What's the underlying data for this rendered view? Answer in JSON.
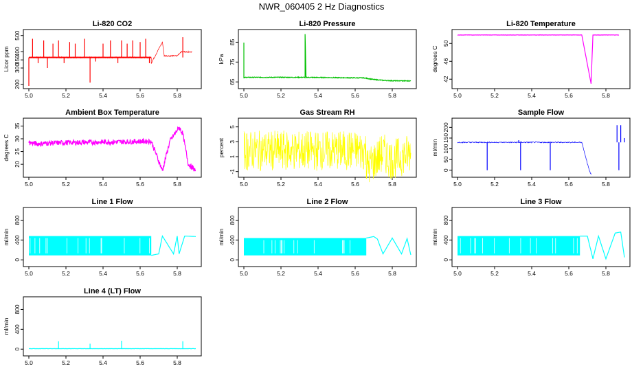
{
  "title": "NWR_060405 2 Hz Diagnostics",
  "chart_data": [
    {
      "type": "line",
      "title": "Li-820 CO2",
      "ylabel": "Licor ppm",
      "color": "#ff0000",
      "xlim": [
        5.0,
        5.9
      ],
      "ylim": [
        190,
        520
      ],
      "xticks": [
        "5.0",
        "5.2",
        "5.4",
        "5.6",
        "5.8"
      ],
      "yticks": [
        "200",
        "300",
        "350",
        "400",
        "500"
      ],
      "series": [
        {
          "name": "CO2",
          "baseline": 365,
          "noise": 4,
          "x": [
            5.0,
            5.66,
            5.66,
            5.72,
            5.73,
            5.8,
            5.82,
            5.88
          ],
          "y": [
            365,
            365,
            330,
            460,
            375,
            375,
            400,
            400
          ],
          "spikes_x": [
            5.0,
            5.02,
            5.05,
            5.08,
            5.1,
            5.13,
            5.16,
            5.19,
            5.22,
            5.25,
            5.3,
            5.33,
            5.36,
            5.4,
            5.44,
            5.48,
            5.5,
            5.53,
            5.56,
            5.6,
            5.63,
            5.65,
            5.83
          ],
          "spikes_y": [
            190,
            480,
            330,
            470,
            300,
            450,
            470,
            330,
            460,
            450,
            480,
            210,
            340,
            450,
            470,
            330,
            470,
            450,
            470,
            460,
            480,
            330,
            490
          ]
        }
      ]
    },
    {
      "type": "line",
      "title": "Li-820 Pressure",
      "ylabel": "kPa",
      "color": "#00c000",
      "xlim": [
        5.0,
        5.9
      ],
      "ylim": [
        63,
        90
      ],
      "xticks": [
        "5.0",
        "5.2",
        "5.4",
        "5.6",
        "5.8"
      ],
      "yticks": [
        "65",
        "75",
        "85"
      ],
      "series": [
        {
          "name": "Pressure",
          "baseline": null,
          "noise": 0.2,
          "x": [
            5.0,
            5.0,
            5.01,
            5.33,
            5.33,
            5.335,
            5.65,
            5.7,
            5.75,
            5.8,
            5.9
          ],
          "y": [
            85,
            67,
            67.3,
            67.3,
            89,
            67.3,
            67.0,
            66.2,
            65.8,
            65.6,
            65.5
          ],
          "spikes_x": [],
          "spikes_y": []
        }
      ]
    },
    {
      "type": "line",
      "title": "Li-820 Temperature",
      "ylabel": "degrees C",
      "color": "#ff00ff",
      "xlim": [
        5.0,
        5.9
      ],
      "ylim": [
        40.5,
        52.5
      ],
      "xticks": [
        "5.0",
        "5.2",
        "5.4",
        "5.6",
        "5.8"
      ],
      "yticks": [
        "42",
        "46",
        "50"
      ],
      "series": [
        {
          "name": "Temperature",
          "baseline": null,
          "noise": 0.03,
          "x": [
            5.0,
            5.67,
            5.72,
            5.73,
            5.74,
            5.87
          ],
          "y": [
            51.9,
            51.9,
            41.0,
            51.9,
            51.9,
            51.9
          ],
          "spikes_x": [],
          "spikes_y": []
        }
      ]
    },
    {
      "type": "line",
      "title": "Ambient Box Temperature",
      "ylabel": "degrees C",
      "color": "#ff00ff",
      "xlim": [
        5.0,
        5.9
      ],
      "ylim": [
        16,
        37
      ],
      "xticks": [
        "5.0",
        "5.2",
        "5.4",
        "5.6",
        "5.8"
      ],
      "yticks": [
        "20",
        "25",
        "30",
        "35"
      ],
      "series": [
        {
          "name": "Box temp",
          "baseline": null,
          "noise": 1.0,
          "x": [
            5.0,
            5.05,
            5.1,
            5.2,
            5.3,
            5.4,
            5.5,
            5.6,
            5.66,
            5.72,
            5.76,
            5.81,
            5.83,
            5.86,
            5.9
          ],
          "y": [
            28.5,
            28,
            28.3,
            28.5,
            28.6,
            28.7,
            28.8,
            29,
            29,
            17.5,
            29,
            34.5,
            32,
            20,
            17.5
          ],
          "spikes_x": [],
          "spikes_y": []
        }
      ]
    },
    {
      "type": "line",
      "title": "Gas Stream RH",
      "ylabel": "percent",
      "color": "#ffff00",
      "xlim": [
        5.0,
        5.9
      ],
      "ylim": [
        -1.4,
        5.8
      ],
      "xticks": [
        "5.0",
        "5.2",
        "5.4",
        "5.6",
        "5.8"
      ],
      "yticks": [
        "-1",
        "1",
        "3",
        "5"
      ],
      "series": [
        {
          "name": "RH",
          "baseline": null,
          "noise": 2.7,
          "x": [
            5.0,
            5.66,
            5.66,
            5.73,
            5.75,
            5.8,
            5.82,
            5.9
          ],
          "y": [
            1.8,
            1.8,
            -0.5,
            1.0,
            1.5,
            0.5,
            0.8,
            1.5
          ],
          "spikes_x": [],
          "spikes_y": []
        }
      ]
    },
    {
      "type": "line",
      "title": "Sample Flow",
      "ylabel": "ml/min",
      "color": "#0000ff",
      "xlim": [
        5.0,
        5.9
      ],
      "ylim": [
        -20,
        230
      ],
      "xticks": [
        "5.0",
        "5.2",
        "5.4",
        "5.6",
        "5.8"
      ],
      "yticks": [
        "0",
        "50",
        "100",
        "150",
        "200"
      ],
      "series": [
        {
          "name": "Sample flow",
          "baseline": null,
          "noise": 2.5,
          "x": [
            5.0,
            5.67,
            5.71,
            5.72
          ],
          "y": [
            130,
            130,
            0,
            -20
          ],
          "spikes_x": [
            5.16,
            5.33,
            5.34,
            5.5,
            5.86,
            5.87,
            5.88,
            5.9
          ],
          "spikes_y": [
            0,
            140,
            0,
            0,
            210,
            0,
            210,
            150
          ]
        }
      ]
    },
    {
      "type": "line",
      "title": "Line 1 Flow",
      "ylabel": "ml/min",
      "color": "#00ffff",
      "xlim": [
        5.0,
        5.9
      ],
      "ylim": [
        -80,
        1000
      ],
      "xticks": [
        "5.0",
        "5.2",
        "5.4",
        "5.6",
        "5.8"
      ],
      "yticks": [
        "0",
        "400",
        "800"
      ],
      "series": [
        {
          "name": "Line 1",
          "baseline": null,
          "noise": 0,
          "band_x": [
            5.0,
            5.66
          ],
          "band_lo": 90,
          "band_hi": 480,
          "x": [
            5.66,
            5.7,
            5.72,
            5.78,
            5.8,
            5.81,
            5.84,
            5.9
          ],
          "y": [
            90,
            120,
            480,
            120,
            480,
            120,
            480,
            470
          ],
          "spikes_x": [],
          "spikes_y": []
        }
      ]
    },
    {
      "type": "line",
      "title": "Line 2 Flow",
      "ylabel": "ml/min",
      "color": "#00ffff",
      "xlim": [
        5.0,
        5.9
      ],
      "ylim": [
        -80,
        1000
      ],
      "xticks": [
        "5.0",
        "5.2",
        "5.4",
        "5.6",
        "5.8"
      ],
      "yticks": [
        "0",
        "400",
        "800"
      ],
      "series": [
        {
          "name": "Line 2",
          "baseline": null,
          "noise": 0,
          "band_x": [
            5.0,
            5.66
          ],
          "band_lo": 90,
          "band_hi": 440,
          "x": [
            5.66,
            5.7,
            5.72,
            5.75,
            5.8,
            5.85,
            5.88,
            5.9
          ],
          "y": [
            440,
            470,
            420,
            120,
            440,
            120,
            430,
            100
          ],
          "spikes_x": [],
          "spikes_y": []
        }
      ]
    },
    {
      "type": "line",
      "title": "Line 3 Flow",
      "ylabel": "ml/min",
      "color": "#00ffff",
      "xlim": [
        5.0,
        5.9
      ],
      "ylim": [
        -80,
        1000
      ],
      "xticks": [
        "5.0",
        "5.2",
        "5.4",
        "5.6",
        "5.8"
      ],
      "yticks": [
        "0",
        "400",
        "800"
      ],
      "series": [
        {
          "name": "Line 3",
          "baseline": null,
          "noise": 0,
          "band_x": [
            5.0,
            5.66
          ],
          "band_lo": 90,
          "band_hi": 480,
          "x": [
            5.66,
            5.7,
            5.73,
            5.76,
            5.8,
            5.85,
            5.88,
            5.9
          ],
          "y": [
            480,
            480,
            20,
            480,
            20,
            540,
            560,
            50
          ],
          "spikes_x": [],
          "spikes_y": []
        }
      ]
    },
    {
      "type": "line",
      "title": "Line 4 (LT) Flow",
      "ylabel": "ml/min",
      "color": "#00ffff",
      "xlim": [
        5.0,
        5.9
      ],
      "ylim": [
        -80,
        1000
      ],
      "xticks": [
        "5.0",
        "5.2",
        "5.4",
        "5.6",
        "5.8"
      ],
      "yticks": [
        "0",
        "400",
        "800"
      ],
      "series": [
        {
          "name": "Line 4",
          "baseline": null,
          "noise": 2,
          "x": [
            5.0,
            5.9
          ],
          "y": [
            10,
            10
          ],
          "spikes_x": [
            5.16,
            5.33,
            5.5,
            5.83
          ],
          "spikes_y": [
            160,
            110,
            170,
            160
          ]
        }
      ]
    }
  ]
}
